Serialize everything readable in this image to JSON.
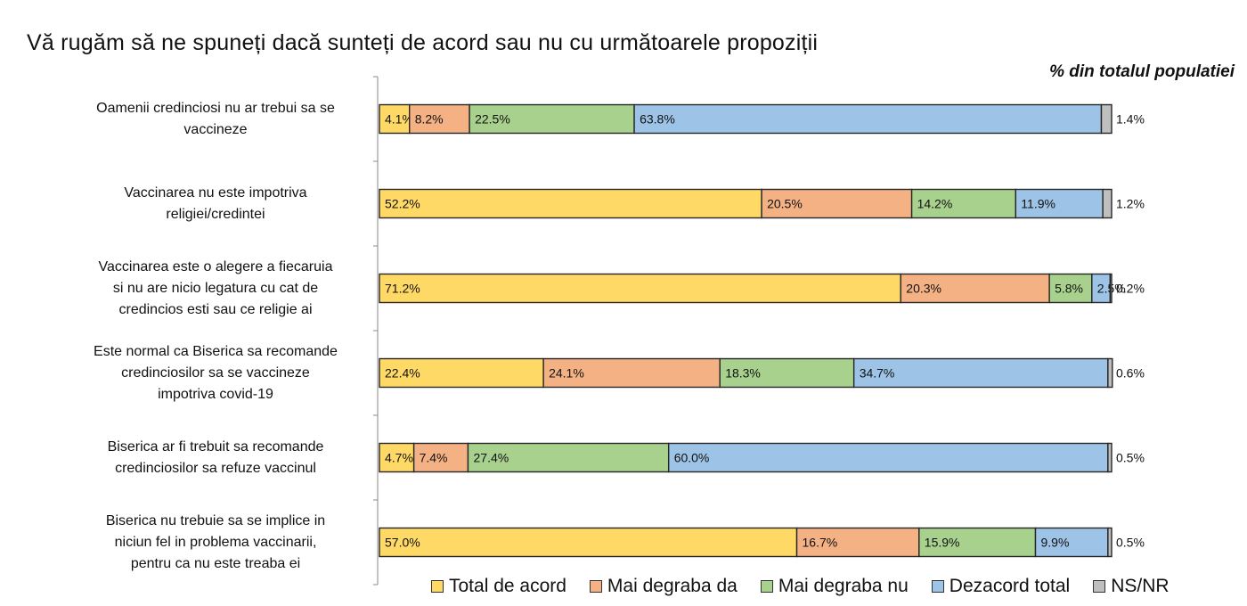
{
  "title": "Vă rugăm să ne spuneți dacă sunteți de acord sau nu cu următoarele propoziții",
  "subtitle": "% din totalul populatiei",
  "colors": {
    "total_acord": "#FFD966",
    "mai_degraba_da": "#F4B183",
    "mai_degraba_nu": "#A9D18E",
    "dezacord_total": "#9DC3E6",
    "nsnr": "#BFBFBF",
    "outline": "#262626"
  },
  "chart_data": {
    "type": "bar",
    "orientation": "horizontal",
    "stacked": true,
    "xlim": [
      0,
      100
    ],
    "legend_position": "bottom",
    "grid": false,
    "categories": [
      "Oamenii credinciosi nu ar trebui sa se vaccineze",
      "Vaccinarea nu este impotriva religiei/credintei",
      "Vaccinarea este o alegere a fiecaruia si nu are nicio legatura cu cat de credincios esti sau ce religie ai",
      "Este normal ca Biserica sa recomande credinciosilor sa se vaccineze impotriva covid-19",
      "Biserica ar fi trebuit sa recomande credinciosilor sa refuze vaccinul",
      "Biserica nu trebuie sa se implice in niciun fel in problema vaccinarii, pentru ca nu este treaba ei"
    ],
    "series": [
      {
        "name": "Total de acord",
        "color": "#FFD966",
        "values": [
          4.1,
          52.2,
          71.2,
          22.4,
          4.7,
          57.0
        ],
        "labels": [
          "4.1%",
          "52.2%",
          "71.2%",
          "22.4%",
          "4.7%",
          "57.0%"
        ]
      },
      {
        "name": "Mai degraba da",
        "color": "#F4B183",
        "values": [
          8.2,
          20.5,
          20.3,
          24.1,
          7.4,
          16.7
        ],
        "labels": [
          "8.2%",
          "20.5%",
          "20.3%",
          "24.1%",
          "7.4%",
          "16.7%"
        ]
      },
      {
        "name": "Mai degraba nu",
        "color": "#A9D18E",
        "values": [
          22.5,
          14.2,
          5.8,
          18.3,
          27.4,
          15.9
        ],
        "labels": [
          "22.5%",
          "14.2%",
          "5.8%",
          "18.3%",
          "27.4%",
          "15.9%"
        ]
      },
      {
        "name": "Dezacord total",
        "color": "#9DC3E6",
        "values": [
          63.8,
          11.9,
          2.5,
          34.7,
          60.0,
          9.9
        ],
        "labels": [
          "63.8%",
          "11.9%",
          "2.5%",
          "34.7%",
          "60.0%",
          "9.9%"
        ]
      },
      {
        "name": "NS/NR",
        "color": "#BFBFBF",
        "values": [
          1.4,
          1.2,
          0.2,
          0.6,
          0.5,
          0.5
        ],
        "labels": [
          "1.4%",
          "1.2%",
          "0.2%",
          "0.6%",
          "0.5%",
          "0.5%"
        ]
      }
    ]
  },
  "category_lines": [
    [
      "Oamenii credinciosi nu ar trebui sa se",
      "vaccineze"
    ],
    [
      "Vaccinarea nu este impotriva",
      "religiei/credintei"
    ],
    [
      "Vaccinarea este o alegere a fiecaruia",
      "si nu are nicio legatura cu cat de",
      "credincios esti sau ce religie ai"
    ],
    [
      "Este normal ca Biserica sa recomande",
      "credinciosilor sa se vaccineze",
      "impotriva covid-19"
    ],
    [
      "Biserica ar fi trebuit sa recomande",
      "credinciosilor sa refuze vaccinul"
    ],
    [
      "Biserica nu trebuie sa se implice in",
      "niciun fel in problema vaccinarii,",
      "pentru ca nu este treaba ei"
    ]
  ],
  "legend": [
    {
      "label": "Total de acord",
      "color": "#FFD966"
    },
    {
      "label": "Mai degraba da",
      "color": "#F4B183"
    },
    {
      "label": "Mai degraba nu",
      "color": "#A9D18E"
    },
    {
      "label": "Dezacord total",
      "color": "#9DC3E6"
    },
    {
      "label": "NS/NR",
      "color": "#BFBFBF"
    }
  ]
}
